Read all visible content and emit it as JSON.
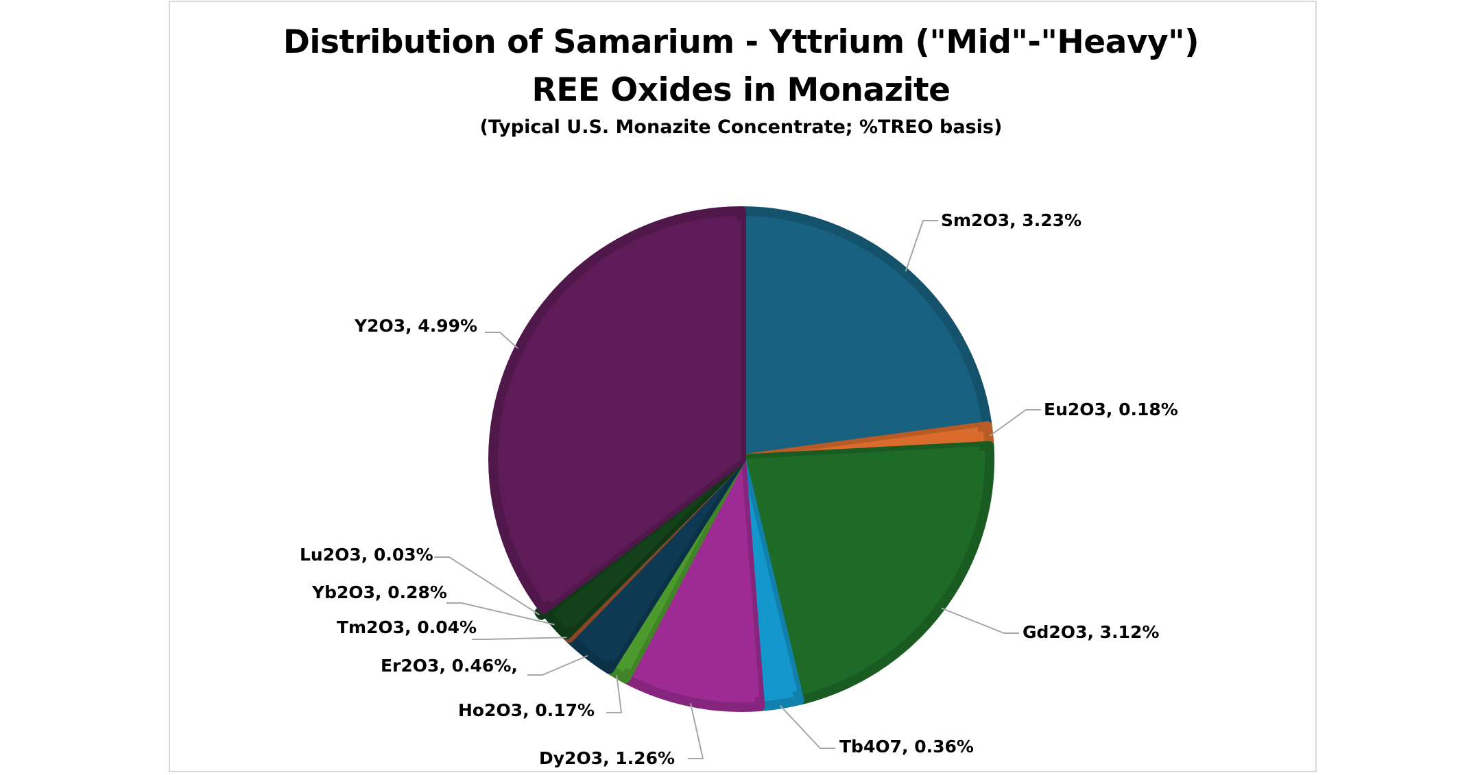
{
  "chart": {
    "title_line1": "Distribution of Samarium - Yttrium (\"Mid\"-\"Heavy\")",
    "title_line2": "REE Oxides in Monazite",
    "subtitle": "(Typical U.S. Monazite Concentrate; %TREO basis)"
  },
  "labels": [
    {
      "text": "Sm2O3, 3.23%"
    },
    {
      "text": "Eu2O3, 0.18%"
    },
    {
      "text": "Gd2O3, 3.12%"
    },
    {
      "text": "Tb4O7, 0.36%"
    },
    {
      "text": "Dy2O3, 1.26%"
    },
    {
      "text": "Ho2O3, 0.17%"
    },
    {
      "text": "Er2O3, 0.46%,"
    },
    {
      "text": "Tm2O3, 0.04%"
    },
    {
      "text": "Yb2O3, 0.28%"
    },
    {
      "text": "Lu2O3, 0.03%"
    },
    {
      "text": "Y2O3, 4.99%"
    }
  ],
  "chart_data": {
    "type": "pie",
    "title": "Distribution of Samarium - Yttrium (\"Mid\"-\"Heavy\") REE Oxides in Monazite",
    "subtitle": "(Typical U.S. Monazite Concentrate; %TREO basis)",
    "unit": "%TREO",
    "start_angle_deg": 0,
    "direction": "clockwise",
    "categories": [
      "Sm2O3",
      "Eu2O3",
      "Gd2O3",
      "Tb4O7",
      "Dy2O3",
      "Ho2O3",
      "Er2O3",
      "Tm2O3",
      "Yb2O3",
      "Lu2O3",
      "Y2O3"
    ],
    "values": [
      3.23,
      0.18,
      3.12,
      0.36,
      1.26,
      0.17,
      0.46,
      0.04,
      0.28,
      0.03,
      4.99
    ],
    "colors": [
      "#17607f",
      "#d96b2c",
      "#1d6b27",
      "#1497cc",
      "#9d2b93",
      "#4c9a2e",
      "#0d3a52",
      "#a0522d",
      "#13421a",
      "#13421a",
      "#5e1b57"
    ],
    "data_labels": [
      "Sm2O3, 3.23%",
      "Eu2O3, 0.18%",
      "Gd2O3, 3.12%",
      "Tb4O7, 0.36%",
      "Dy2O3, 1.26%",
      "Ho2O3, 0.17%",
      "Er2O3, 0.46%,",
      "Tm2O3, 0.04%",
      "Yb2O3, 0.28%",
      "Lu2O3, 0.03%",
      "Y2O3, 4.99%"
    ],
    "legend": "none (data labels with leader lines)"
  }
}
